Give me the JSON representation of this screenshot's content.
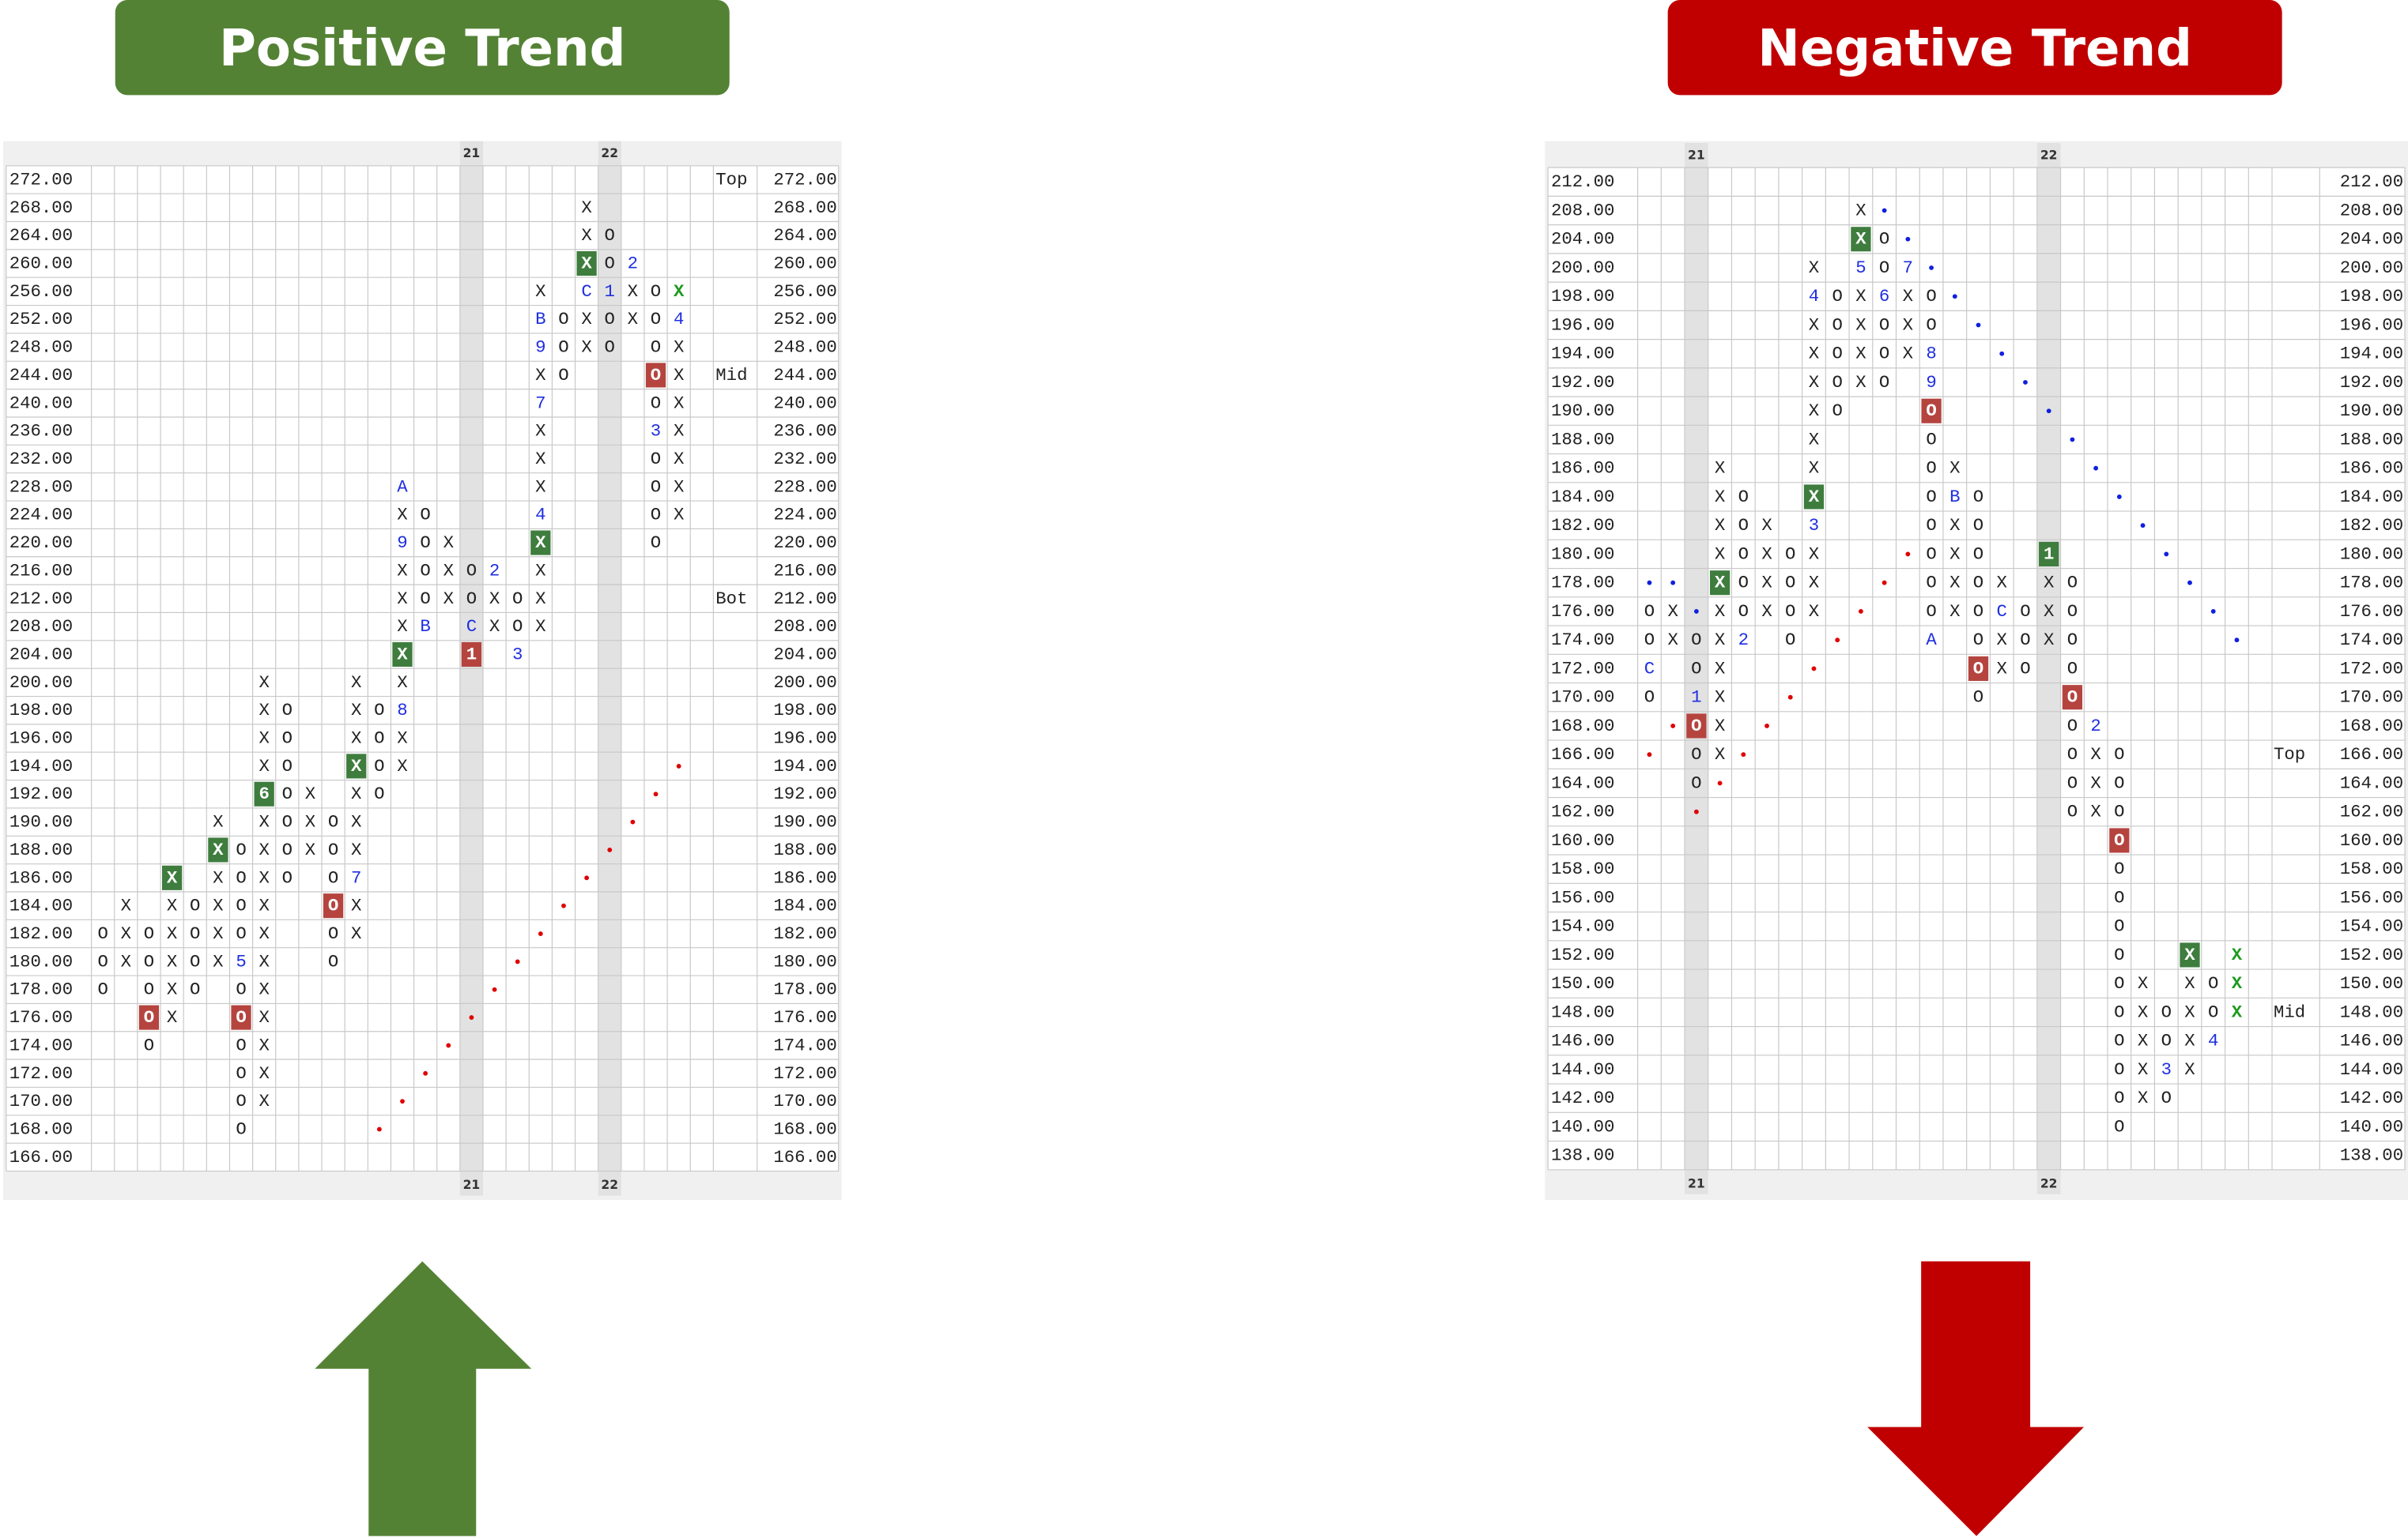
{
  "left": {
    "banner": "Positive Trend",
    "column_labels": {
      "16": "21",
      "22": "22"
    },
    "rows": [
      {
        "price": "272.00",
        "note": "Top",
        "cells": {}
      },
      {
        "price": "268.00",
        "cells": {
          "21": "X"
        }
      },
      {
        "price": "264.00",
        "cells": {
          "21": "X",
          "22": "O"
        }
      },
      {
        "price": "260.00",
        "cells": {
          "21": {
            "text": "X",
            "box": "green"
          },
          "22": "O",
          "23": "2"
        }
      },
      {
        "price": "256.00",
        "cells": {
          "19": "X",
          "21": "C",
          "22": "1",
          "23": "X",
          "24": "O",
          "25": {
            "text": "X",
            "color": "green"
          }
        }
      },
      {
        "price": "252.00",
        "cells": {
          "19": "B",
          "20": "O",
          "21": "X",
          "22": "O",
          "23": "X",
          "24": "O",
          "25": "4"
        }
      },
      {
        "price": "248.00",
        "cells": {
          "19": "9",
          "20": "O",
          "21": "X",
          "22": "O",
          "24": "O",
          "25": "X"
        }
      },
      {
        "price": "244.00",
        "note": "Mid",
        "cells": {
          "19": "X",
          "20": "O",
          "24": {
            "text": "O",
            "box": "red"
          },
          "25": "X"
        }
      },
      {
        "price": "240.00",
        "cells": {
          "19": "7",
          "24": "O",
          "25": "X"
        }
      },
      {
        "price": "236.00",
        "cells": {
          "19": "X",
          "24": "3",
          "25": "X"
        }
      },
      {
        "price": "232.00",
        "cells": {
          "19": "X",
          "24": "O",
          "25": "X"
        }
      },
      {
        "price": "228.00",
        "cells": {
          "13": "A",
          "19": "X",
          "24": "O",
          "25": "X"
        }
      },
      {
        "price": "224.00",
        "cells": {
          "13": "X",
          "14": "O",
          "19": "4",
          "24": "O",
          "25": "X"
        }
      },
      {
        "price": "220.00",
        "cells": {
          "13": "9",
          "14": "O",
          "15": "X",
          "19": {
            "text": "X",
            "box": "green"
          },
          "24": "O"
        }
      },
      {
        "price": "216.00",
        "cells": {
          "13": "X",
          "14": "O",
          "15": "X",
          "16": "O",
          "17": "2",
          "19": "X"
        }
      },
      {
        "price": "212.00",
        "note": "Bot",
        "cells": {
          "13": "X",
          "14": "O",
          "15": "X",
          "16": "O",
          "17": "X",
          "18": "O",
          "19": "X"
        }
      },
      {
        "price": "208.00",
        "cells": {
          "13": "X",
          "14": "B",
          "16": "C",
          "17": "X",
          "18": "O",
          "19": "X"
        }
      },
      {
        "price": "204.00",
        "cells": {
          "13": {
            "text": "X",
            "box": "green"
          },
          "16": {
            "text": "1",
            "box": "red"
          },
          "18": "3"
        }
      },
      {
        "price": "200.00",
        "cells": {
          "7": "X",
          "11": "X",
          "13": "X"
        }
      },
      {
        "price": "198.00",
        "cells": {
          "7": "X",
          "8": "O",
          "11": "X",
          "12": "O",
          "13": "8"
        }
      },
      {
        "price": "196.00",
        "cells": {
          "7": "X",
          "8": "O",
          "11": "X",
          "12": "O",
          "13": "X"
        }
      },
      {
        "price": "194.00",
        "cells": {
          "7": "X",
          "8": "O",
          "11": {
            "text": "X",
            "box": "green"
          },
          "12": "O",
          "13": "X",
          "25": {
            "dot": "red"
          }
        }
      },
      {
        "price": "192.00",
        "cells": {
          "7": {
            "text": "6",
            "box": "green"
          },
          "8": "O",
          "9": "X",
          "11": "X",
          "12": "O",
          "24": {
            "dot": "red"
          }
        }
      },
      {
        "price": "190.00",
        "cells": {
          "5": "X",
          "7": "X",
          "8": "O",
          "9": "X",
          "10": "O",
          "11": "X",
          "23": {
            "dot": "red"
          }
        }
      },
      {
        "price": "188.00",
        "cells": {
          "5": {
            "text": "X",
            "box": "green"
          },
          "6": "O",
          "7": "X",
          "8": "O",
          "9": "X",
          "10": "O",
          "11": "X",
          "22": {
            "dot": "red"
          }
        }
      },
      {
        "price": "186.00",
        "cells": {
          "3": {
            "text": "X",
            "box": "green"
          },
          "5": "X",
          "6": "O",
          "7": "X",
          "8": "O",
          "10": "O",
          "11": "7",
          "21": {
            "dot": "red"
          }
        }
      },
      {
        "price": "184.00",
        "cells": {
          "1": "X",
          "3": "X",
          "4": "O",
          "5": "X",
          "6": "O",
          "7": "X",
          "10": {
            "text": "O",
            "box": "red"
          },
          "11": "X",
          "20": {
            "dot": "red"
          }
        }
      },
      {
        "price": "182.00",
        "cells": {
          "0": "O",
          "1": "X",
          "2": "O",
          "3": "X",
          "4": "O",
          "5": "X",
          "6": "O",
          "7": "X",
          "10": "O",
          "11": "X",
          "19": {
            "dot": "red"
          }
        }
      },
      {
        "price": "180.00",
        "cells": {
          "0": "O",
          "1": "X",
          "2": "O",
          "3": "X",
          "4": "O",
          "5": "X",
          "6": "5",
          "7": "X",
          "10": "O",
          "18": {
            "dot": "red"
          }
        }
      },
      {
        "price": "178.00",
        "cells": {
          "0": "O",
          "2": "O",
          "3": "X",
          "4": "O",
          "6": "O",
          "7": "X",
          "17": {
            "dot": "red"
          }
        }
      },
      {
        "price": "176.00",
        "cells": {
          "2": {
            "text": "O",
            "box": "red"
          },
          "3": "X",
          "6": {
            "text": "O",
            "box": "red"
          },
          "7": "X",
          "16": {
            "dot": "red"
          }
        }
      },
      {
        "price": "174.00",
        "cells": {
          "2": "O",
          "6": "O",
          "7": "X",
          "15": {
            "dot": "red"
          }
        }
      },
      {
        "price": "172.00",
        "cells": {
          "6": "O",
          "7": "X",
          "14": {
            "dot": "red"
          }
        }
      },
      {
        "price": "170.00",
        "cells": {
          "6": "O",
          "7": "X",
          "13": {
            "dot": "red"
          }
        }
      },
      {
        "price": "168.00",
        "cells": {
          "6": "O",
          "12": {
            "dot": "red"
          }
        }
      },
      {
        "price": "166.00",
        "cells": {}
      }
    ]
  },
  "right": {
    "banner": "Negative Trend",
    "column_labels": {
      "2": "21",
      "17": "22"
    },
    "rows": [
      {
        "price": "212.00",
        "cells": {}
      },
      {
        "price": "208.00",
        "cells": {
          "9": "X",
          "10": {
            "dot": "blue"
          }
        }
      },
      {
        "price": "204.00",
        "cells": {
          "9": {
            "text": "X",
            "box": "green"
          },
          "10": "O",
          "11": {
            "dot": "blue"
          }
        }
      },
      {
        "price": "200.00",
        "cells": {
          "7": "X",
          "9": "5",
          "10": "O",
          "11": "7",
          "12": {
            "dot": "blue"
          }
        }
      },
      {
        "price": "198.00",
        "cells": {
          "7": "4",
          "8": "O",
          "9": "X",
          "10": "6",
          "11": "X",
          "12": "O",
          "13": {
            "dot": "blue"
          }
        }
      },
      {
        "price": "196.00",
        "cells": {
          "7": "X",
          "8": "O",
          "9": "X",
          "10": "O",
          "11": "X",
          "12": "O",
          "14": {
            "dot": "blue"
          }
        }
      },
      {
        "price": "194.00",
        "cells": {
          "7": "X",
          "8": "O",
          "9": "X",
          "10": "O",
          "11": "X",
          "12": "8",
          "15": {
            "dot": "blue"
          }
        }
      },
      {
        "price": "192.00",
        "cells": {
          "7": "X",
          "8": "O",
          "9": "X",
          "10": "O",
          "12": "9",
          "16": {
            "dot": "blue"
          }
        }
      },
      {
        "price": "190.00",
        "cells": {
          "7": "X",
          "8": "O",
          "12": {
            "text": "O",
            "box": "red"
          },
          "17": {
            "dot": "blue"
          }
        }
      },
      {
        "price": "188.00",
        "cells": {
          "7": "X",
          "12": "O",
          "18": {
            "dot": "blue"
          }
        }
      },
      {
        "price": "186.00",
        "cells": {
          "3": "X",
          "7": "X",
          "12": "O",
          "13": "X",
          "19": {
            "dot": "blue"
          }
        }
      },
      {
        "price": "184.00",
        "cells": {
          "3": "X",
          "4": "O",
          "7": {
            "text": "X",
            "box": "green"
          },
          "12": "O",
          "13": "B",
          "14": "O",
          "20": {
            "dot": "blue"
          }
        }
      },
      {
        "price": "182.00",
        "cells": {
          "3": "X",
          "4": "O",
          "5": "X",
          "7": "3",
          "12": "O",
          "13": "X",
          "14": "O",
          "21": {
            "dot": "blue"
          }
        }
      },
      {
        "price": "180.00",
        "cells": {
          "3": "X",
          "4": "O",
          "5": "X",
          "6": "O",
          "7": "X",
          "11": {
            "dot": "red"
          },
          "12": "O",
          "13": "X",
          "14": "O",
          "17": {
            "text": "1",
            "box": "green"
          },
          "22": {
            "dot": "blue"
          }
        }
      },
      {
        "price": "178.00",
        "cells": {
          "0": {
            "dot": "blue"
          },
          "1": {
            "dot": "blue"
          },
          "3": {
            "text": "X",
            "box": "green"
          },
          "4": "O",
          "5": "X",
          "6": "O",
          "7": "X",
          "10": {
            "dot": "red"
          },
          "12": "O",
          "13": "X",
          "14": "O",
          "15": "X",
          "17": "X",
          "18": "O",
          "23": {
            "dot": "blue"
          }
        }
      },
      {
        "price": "176.00",
        "cells": {
          "0": "O",
          "1": "X",
          "2": {
            "dot": "blue"
          },
          "3": "X",
          "4": "O",
          "5": "X",
          "6": "O",
          "7": "X",
          "9": {
            "dot": "red"
          },
          "12": "O",
          "13": "X",
          "14": "O",
          "15": "C",
          "16": "O",
          "17": "X",
          "18": "O",
          "24": {
            "dot": "blue"
          }
        }
      },
      {
        "price": "174.00",
        "cells": {
          "0": "O",
          "1": "X",
          "2": "O",
          "3": "X",
          "4": "2",
          "6": "O",
          "8": {
            "dot": "red"
          },
          "12": "A",
          "14": "O",
          "15": "X",
          "16": "O",
          "17": "X",
          "18": "O",
          "25": {
            "dot": "blue"
          }
        }
      },
      {
        "price": "172.00",
        "cells": {
          "0": "C",
          "2": "O",
          "3": "X",
          "7": {
            "dot": "red"
          },
          "14": {
            "text": "O",
            "box": "red"
          },
          "15": "X",
          "16": "O",
          "18": "O"
        }
      },
      {
        "price": "170.00",
        "cells": {
          "0": "O",
          "2": "1",
          "3": "X",
          "6": {
            "dot": "red"
          },
          "14": "O",
          "18": {
            "text": "O",
            "box": "red"
          }
        }
      },
      {
        "price": "168.00",
        "cells": {
          "1": {
            "dot": "red"
          },
          "2": {
            "text": "O",
            "box": "red"
          },
          "3": "X",
          "5": {
            "dot": "red"
          },
          "18": "O",
          "19": "2"
        }
      },
      {
        "price": "166.00",
        "note": "Top",
        "cells": {
          "0": {
            "dot": "red"
          },
          "2": "O",
          "3": "X",
          "4": {
            "dot": "red"
          },
          "18": "O",
          "19": "X",
          "20": "O"
        }
      },
      {
        "price": "164.00",
        "cells": {
          "2": "O",
          "3": {
            "dot": "red"
          },
          "18": "O",
          "19": "X",
          "20": "O"
        }
      },
      {
        "price": "162.00",
        "cells": {
          "2": {
            "dot": "red"
          },
          "18": "O",
          "19": "X",
          "20": "O"
        }
      },
      {
        "price": "160.00",
        "cells": {
          "20": {
            "text": "O",
            "box": "red"
          }
        }
      },
      {
        "price": "158.00",
        "cells": {
          "20": "O"
        }
      },
      {
        "price": "156.00",
        "cells": {
          "20": "O"
        }
      },
      {
        "price": "154.00",
        "cells": {
          "20": "O"
        }
      },
      {
        "price": "152.00",
        "cells": {
          "20": "O",
          "23": {
            "text": "X",
            "box": "green"
          },
          "25": {
            "text": "X",
            "color": "green"
          }
        }
      },
      {
        "price": "150.00",
        "cells": {
          "20": "O",
          "21": "X",
          "23": "X",
          "24": "O",
          "25": {
            "text": "X",
            "color": "green"
          }
        }
      },
      {
        "price": "148.00",
        "note": "Mid",
        "cells": {
          "20": "O",
          "21": "X",
          "22": "O",
          "23": "X",
          "24": "O",
          "25": {
            "text": "X",
            "color": "green"
          }
        }
      },
      {
        "price": "146.00",
        "cells": {
          "20": "O",
          "21": "X",
          "22": "O",
          "23": "X",
          "24": "4"
        }
      },
      {
        "price": "144.00",
        "cells": {
          "20": "O",
          "21": "X",
          "22": "3",
          "23": "X"
        }
      },
      {
        "price": "142.00",
        "cells": {
          "20": "O",
          "21": "X",
          "22": "O"
        }
      },
      {
        "price": "140.00",
        "cells": {
          "20": "O"
        }
      },
      {
        "price": "138.00",
        "cells": {}
      }
    ]
  }
}
